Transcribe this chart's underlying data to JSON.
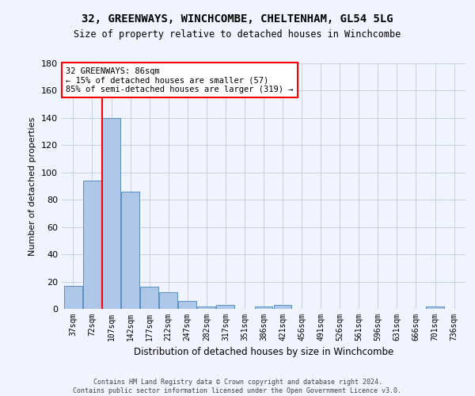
{
  "title1": "32, GREENWAYS, WINCHCOMBE, CHELTENHAM, GL54 5LG",
  "title2": "Size of property relative to detached houses in Winchcombe",
  "xlabel": "Distribution of detached houses by size in Winchcombe",
  "ylabel": "Number of detached properties",
  "categories": [
    "37sqm",
    "72sqm",
    "107sqm",
    "142sqm",
    "177sqm",
    "212sqm",
    "247sqm",
    "282sqm",
    "317sqm",
    "351sqm",
    "386sqm",
    "421sqm",
    "456sqm",
    "491sqm",
    "526sqm",
    "561sqm",
    "596sqm",
    "631sqm",
    "666sqm",
    "701sqm",
    "736sqm"
  ],
  "values": [
    17,
    94,
    140,
    86,
    16,
    12,
    6,
    2,
    3,
    0,
    2,
    3,
    0,
    0,
    0,
    0,
    0,
    0,
    0,
    2,
    0
  ],
  "bar_color": "#aec6e8",
  "bar_edge_color": "#5a8fc0",
  "vline_x": 1.5,
  "vline_color": "red",
  "annotation_text": "32 GREENWAYS: 86sqm\n← 15% of detached houses are smaller (57)\n85% of semi-detached houses are larger (319) →",
  "annotation_box_color": "white",
  "annotation_box_edge": "red",
  "ylim": [
    0,
    180
  ],
  "yticks": [
    0,
    20,
    40,
    60,
    80,
    100,
    120,
    140,
    160,
    180
  ],
  "footer": "Contains HM Land Registry data © Crown copyright and database right 2024.\nContains public sector information licensed under the Open Government Licence v3.0.",
  "bg_color": "#f0f4ff",
  "grid_color": "#c8cfe0"
}
